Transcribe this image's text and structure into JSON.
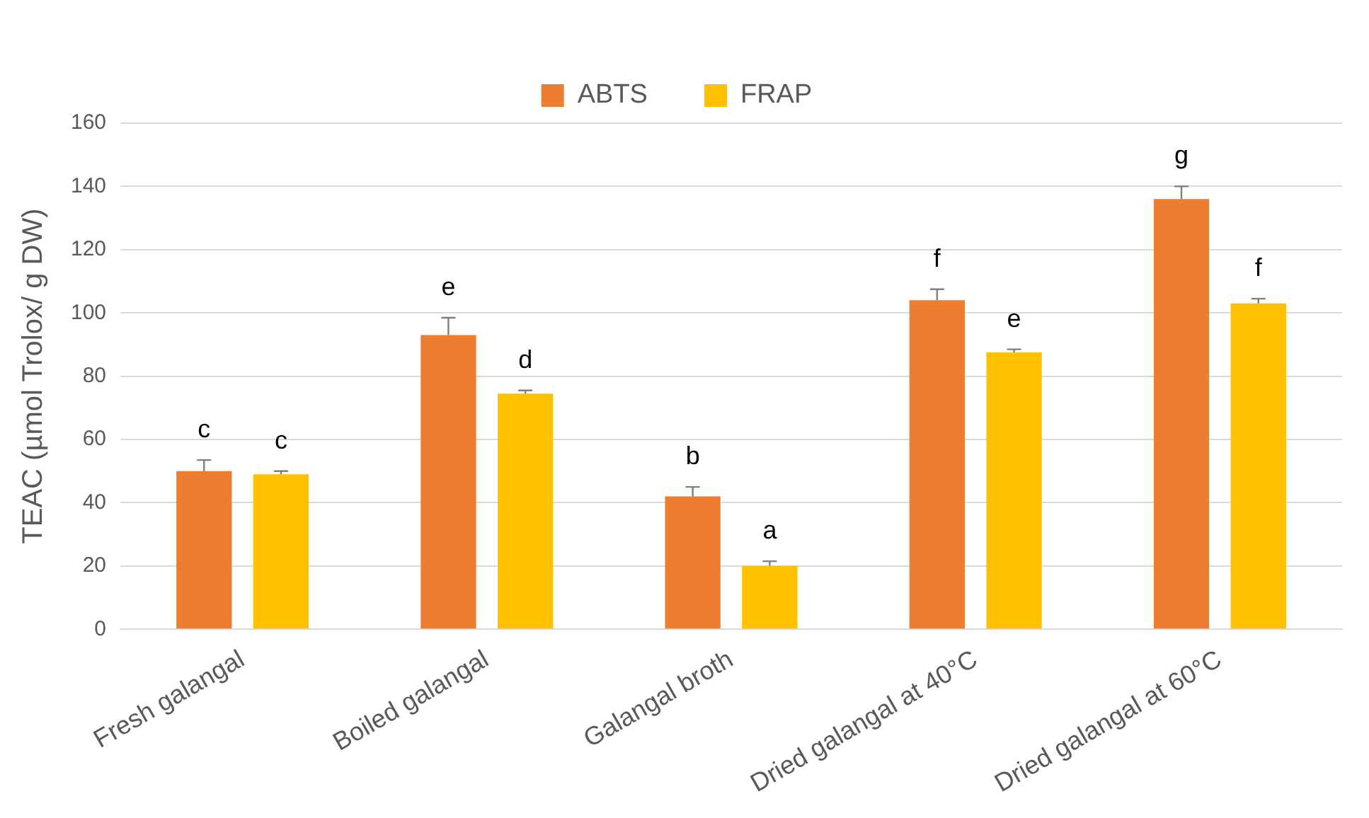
{
  "chart_data": {
    "type": "bar",
    "ylabel": "TEAC (µmol Trolox/ g DW)",
    "categories": [
      "Fresh galangal",
      "Boiled galangal",
      "Galangal broth",
      "Dried galangal at 40°C",
      "Dried galangal at 60°C"
    ],
    "series": [
      {
        "name": "ABTS",
        "color": "#ed7d31",
        "values": [
          50,
          93,
          42,
          104,
          136
        ],
        "errors": [
          [
            50,
            53.5
          ],
          [
            93,
            98.5
          ],
          [
            42,
            45
          ],
          [
            104,
            107.5
          ],
          [
            136,
            140
          ]
        ],
        "value_labels": [
          "c",
          "e",
          "b",
          "f",
          "g"
        ]
      },
      {
        "name": "FRAP",
        "color": "#ffc000",
        "values": [
          49,
          74.5,
          20,
          87.5,
          103
        ],
        "errors": [
          [
            49,
            50
          ],
          [
            74.5,
            75.5
          ],
          [
            20,
            21.5
          ],
          [
            87.5,
            88.5
          ],
          [
            103,
            104.5
          ]
        ],
        "value_labels": [
          "c",
          "d",
          "a",
          "e",
          "f"
        ]
      }
    ],
    "ylim": [
      0,
      160
    ],
    "yticks": [
      0,
      20,
      40,
      60,
      80,
      100,
      120,
      140,
      160
    ],
    "grid": "y",
    "legend": "top"
  }
}
